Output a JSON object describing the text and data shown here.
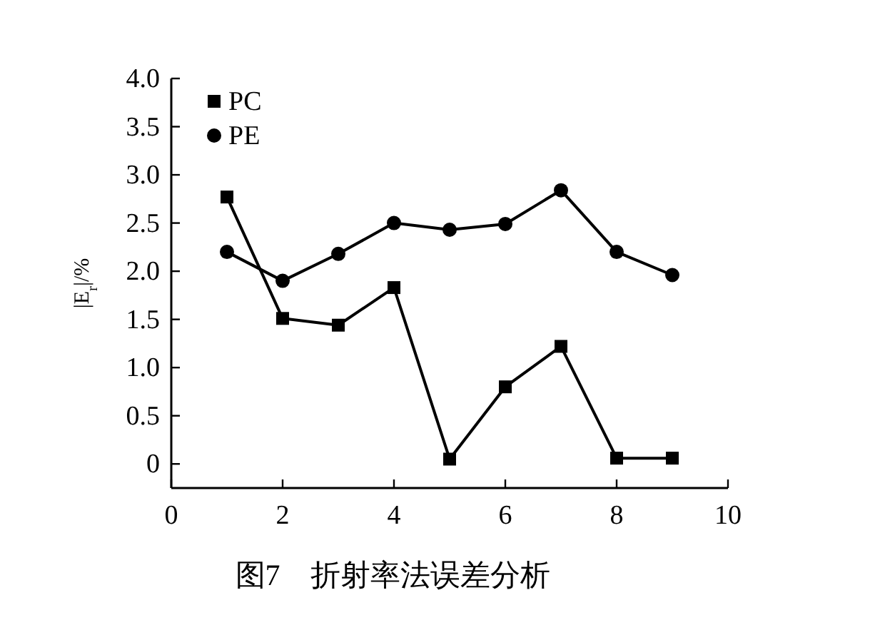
{
  "chart_data": {
    "type": "line",
    "title": "图7　折射率法误差分析",
    "ylabel": "|E$_{r}$|/%",
    "x": [
      1,
      2,
      3,
      4,
      5,
      6,
      7,
      8,
      9
    ],
    "series": [
      {
        "name": "PC",
        "color": "#000000",
        "marker": "square",
        "values": [
          2.77,
          1.51,
          1.44,
          1.83,
          0.05,
          0.8,
          1.22,
          0.06,
          0.06
        ]
      },
      {
        "name": "PE",
        "color": "#000000",
        "marker": "circle",
        "values": [
          2.2,
          1.9,
          2.18,
          2.5,
          2.43,
          2.49,
          2.84,
          2.2,
          1.96
        ]
      }
    ],
    "xlim": [
      0,
      10
    ],
    "xticks": [
      0,
      2,
      4,
      6,
      8,
      10
    ],
    "ylim": [
      -0.25,
      4.0
    ],
    "yticks": [
      0,
      0.5,
      {
        "value": 1,
        "label": "1.0"
      },
      1.5,
      {
        "value": 2,
        "label": "2.0"
      },
      2.5,
      {
        "value": 3,
        "label": "3.0"
      },
      3.5,
      {
        "value": 4,
        "label": "4.0"
      }
    ],
    "line_style": "solid",
    "grid": false,
    "legend": "top left"
  }
}
